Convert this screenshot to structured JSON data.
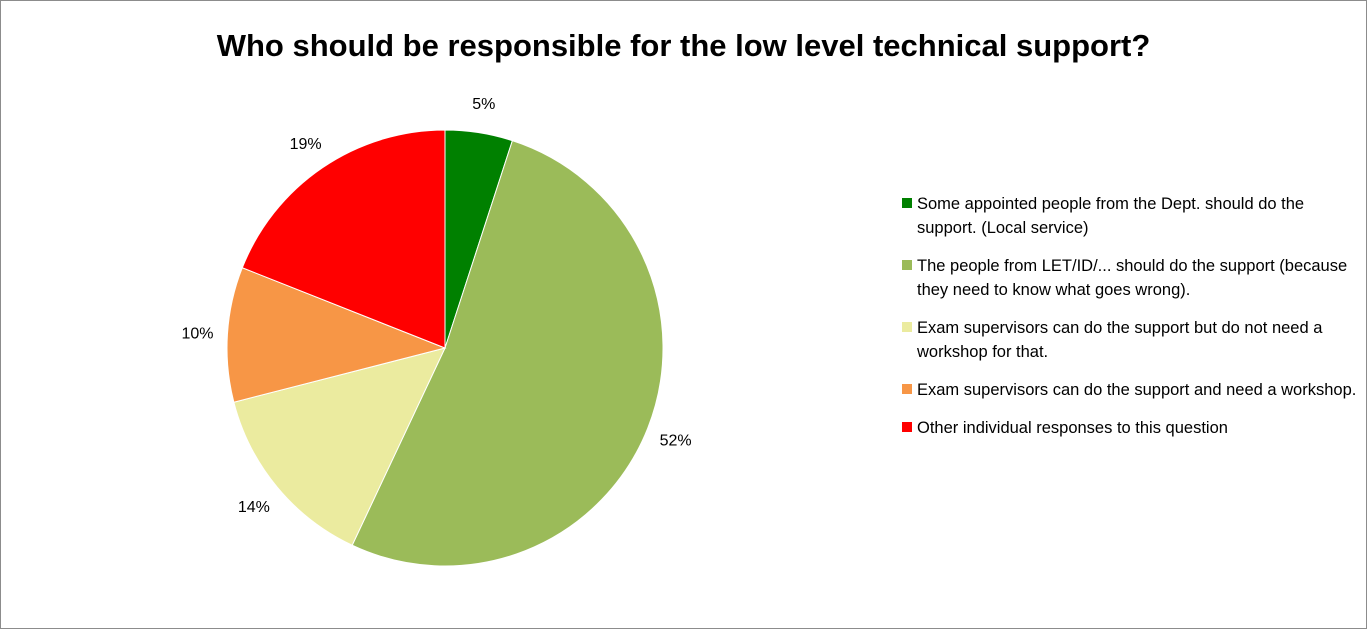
{
  "chart_data": {
    "type": "pie",
    "title": "Who should be responsible for the low level technical support?",
    "legend_position": "right",
    "slices": [
      {
        "label": "Some appointed people from the Dept. should do the support. (Local service)",
        "value": 5,
        "value_label": "5%",
        "color": "#008000"
      },
      {
        "label": "The people from LET/ID/... should do the support (because they need to know what goes wrong).",
        "value": 52,
        "value_label": "52%",
        "color": "#9BBB59"
      },
      {
        "label": "Exam supervisors can do the support but do not need a workshop for that.",
        "value": 14,
        "value_label": "14%",
        "color": "#EBEB9F"
      },
      {
        "label": "Exam supervisors can do the support and need a workshop.",
        "value": 10,
        "value_label": "10%",
        "color": "#F79646"
      },
      {
        "label": "Other individual responses to this question",
        "value": 19,
        "value_label": "19%",
        "color": "#FF0000"
      }
    ]
  }
}
